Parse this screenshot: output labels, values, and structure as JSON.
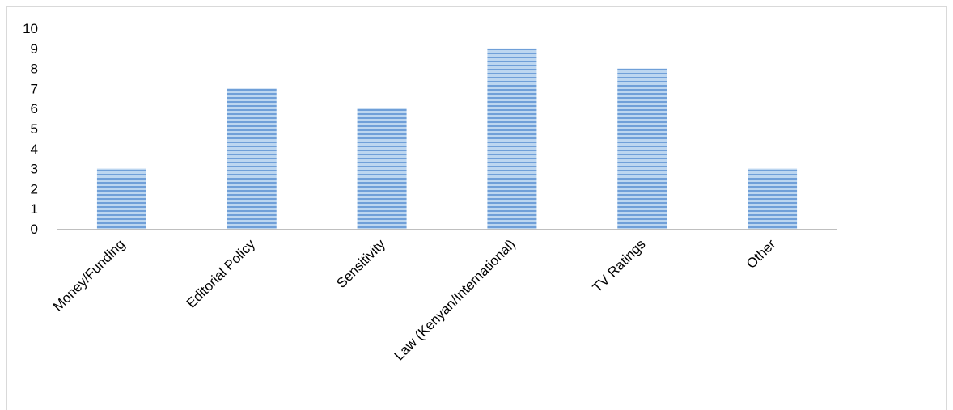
{
  "chart_data": {
    "type": "bar",
    "categories": [
      "Money/Funding",
      "Editorial Policy",
      "Sensitivity",
      "Law (Kenyan/International)",
      "TV Ratings",
      "Other"
    ],
    "values": [
      3,
      7,
      6,
      9,
      8,
      3
    ],
    "title": "",
    "xlabel": "",
    "ylabel": "",
    "ylim": [
      0,
      10
    ],
    "yticks": [
      0,
      1,
      2,
      3,
      4,
      5,
      6,
      7,
      8,
      9,
      10
    ],
    "grid": false,
    "legend": "none",
    "colors": {
      "bar_fill": "#bcd6f0",
      "bar_stripe": "#6f9fd8",
      "axis": "#bfbfbf",
      "text": "#000000"
    }
  }
}
